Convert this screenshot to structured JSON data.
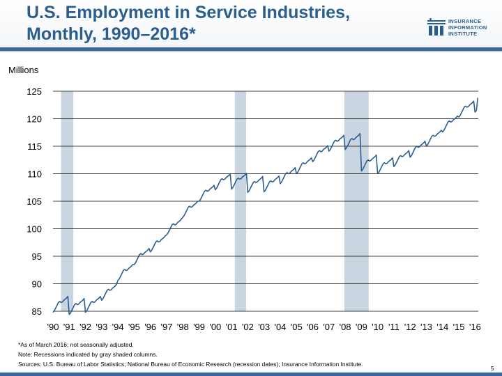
{
  "header": {
    "title_line1": "U.S. Employment in Service Industries,",
    "title_line2": "Monthly, 1990–2016*",
    "logo_line1": "INSURANCE",
    "logo_line2": "INFORMATION",
    "logo_line3": "INSTITUTE",
    "logo_mark": "iii"
  },
  "colors": {
    "brand": "#2b5d8f",
    "line": "#2b5d8f",
    "recession": "#c9d5e0",
    "grid": "#000000"
  },
  "chart_data": {
    "type": "line",
    "title": "U.S. Employment in Service Industries, Monthly, 1990–2016*",
    "ylabel": "Millions",
    "xlabel": "",
    "ylim": [
      85,
      125
    ],
    "xlim": [
      1990,
      2016.2
    ],
    "yticks": [
      "85",
      "90",
      "95",
      "100",
      "105",
      "110",
      "115",
      "120",
      "125"
    ],
    "xticks": [
      "'90",
      "'91",
      "'92",
      "'93",
      "'94",
      "'95",
      "'96",
      "'97",
      "'98",
      "'99",
      "'00",
      "'01",
      "'02",
      "'03",
      "'04",
      "'05",
      "'06",
      "'07",
      "'08",
      "'09",
      "'10",
      "'11",
      "'12",
      "'13",
      "'14",
      "'15",
      "'16"
    ],
    "recessions": [
      {
        "start": 1990.5,
        "end": 1991.25,
        "label": "1990–91 recession"
      },
      {
        "start": 2001.2,
        "end": 2001.9,
        "label": "2001 recession"
      },
      {
        "start": 2007.95,
        "end": 2009.45,
        "label": "2007–09 recession"
      }
    ],
    "series": [
      {
        "name": "Service industry employment (millions, not seasonally adjusted)",
        "annual_base": [
          86.4,
          86.0,
          86.4,
          88.6,
          92.2,
          95.1,
          97.4,
          100.5,
          103.7,
          106.6,
          108.7,
          108.8,
          108.2,
          108.3,
          109.8,
          111.6,
          113.8,
          115.7,
          116.0,
          112.1,
          111.6,
          112.9,
          114.6,
          116.6,
          119.2,
          121.9,
          122.8
        ],
        "seasonal_pattern": [
          -1.6,
          -1.3,
          -0.8,
          -0.3,
          0.2,
          0.4,
          0.2,
          0.3,
          0.6,
          0.8,
          1.0,
          1.3
        ],
        "final_value_march_2016": 123.8
      }
    ]
  },
  "notes": {
    "note1": "*As of March 2016; not seasonally adjusted.",
    "note2": "Note: Recessions indicated by gray shaded columns.",
    "note3": "Sources: U.S. Bureau of Labor Statistics;  National Bureau of Economic Research (recession dates); Insurance Information Institute."
  },
  "page_number": "5"
}
